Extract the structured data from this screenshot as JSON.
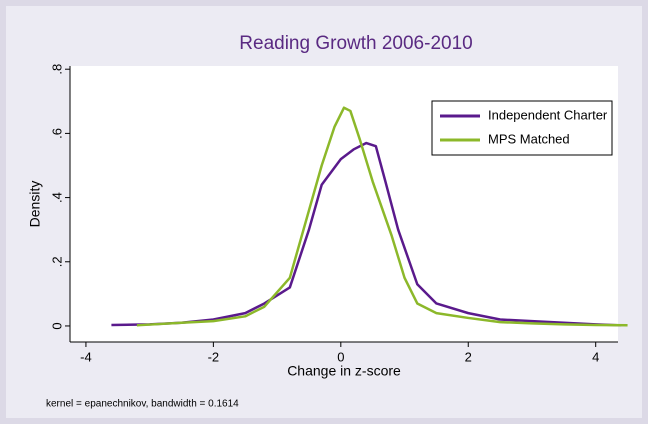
{
  "chart_data": {
    "type": "line",
    "title": "Reading Growth 2006-2010",
    "x_label": "Change in z-score",
    "y_label": "Density",
    "note": "kernel = epanechnikov, bandwidth = 0.1614",
    "xlim": [
      -4.25,
      4.35
    ],
    "ylim": [
      -0.05,
      0.81
    ],
    "xticks": [
      -4,
      -2,
      0,
      2,
      4
    ],
    "yticks": [
      0,
      {
        "value": 0.2,
        "label": ".2"
      },
      {
        "value": 0.4,
        "label": ".4"
      },
      {
        "value": 0.6,
        "label": ".6"
      },
      {
        "value": 0.8,
        "label": ".8"
      }
    ],
    "legend_position": "top-right",
    "series": [
      {
        "name": "Independent Charter",
        "color": "#5a1a8c",
        "x": [
          -3.6,
          -3,
          -2.5,
          -2,
          -1.5,
          -1.2,
          -0.8,
          -0.5,
          -0.3,
          0,
          0.2,
          0.4,
          0.55,
          0.7,
          0.9,
          1.2,
          1.5,
          2,
          2.5,
          3,
          3.5,
          4,
          4.4
        ],
        "values": [
          0.003,
          0.005,
          0.01,
          0.02,
          0.04,
          0.07,
          0.12,
          0.3,
          0.44,
          0.52,
          0.55,
          0.57,
          0.56,
          0.45,
          0.3,
          0.13,
          0.07,
          0.04,
          0.02,
          0.015,
          0.01,
          0.005,
          0.002
        ]
      },
      {
        "name": "MPS Matched",
        "color": "#8cb82a",
        "x": [
          -3.2,
          -2.5,
          -2,
          -1.5,
          -1.2,
          -0.8,
          -0.5,
          -0.3,
          -0.1,
          0.05,
          0.15,
          0.3,
          0.5,
          0.8,
          1,
          1.2,
          1.5,
          2,
          2.5,
          3,
          3.5,
          4,
          4.5
        ],
        "values": [
          0.002,
          0.01,
          0.015,
          0.03,
          0.06,
          0.15,
          0.36,
          0.5,
          0.62,
          0.68,
          0.67,
          0.58,
          0.45,
          0.28,
          0.15,
          0.07,
          0.04,
          0.025,
          0.012,
          0.008,
          0.005,
          0.003,
          0.002
        ]
      }
    ]
  }
}
